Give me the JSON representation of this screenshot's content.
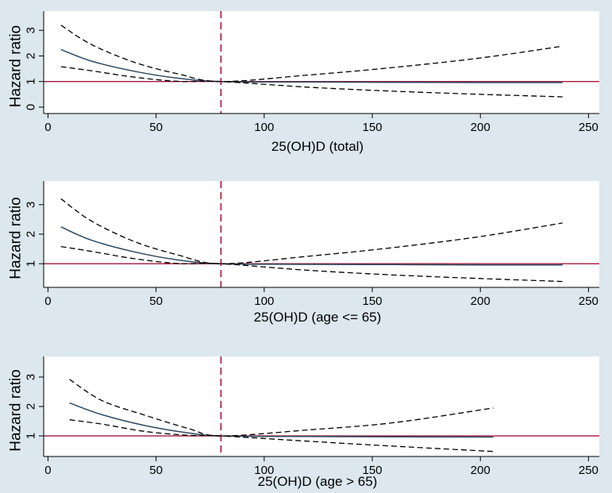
{
  "colors": {
    "background": "#dce7ee",
    "plot_area": "#ffffff",
    "estimate_line": "#2d4a63",
    "ci_line": "#000000",
    "reference_line": "#a4163a",
    "cut_line": "#a4163a"
  },
  "chart_data": [
    {
      "type": "line",
      "xlabel": "25(OH)D (total)",
      "ylabel": "Hazard ratio",
      "xlim": [
        -2,
        255
      ],
      "ylim": [
        -0.25,
        3.75
      ],
      "xticks": [
        0,
        50,
        100,
        150,
        200,
        250
      ],
      "yticks": [
        0,
        1,
        2,
        3
      ],
      "reference_y": 1,
      "vertical_line_x": 80,
      "series": [
        {
          "role": "estimate",
          "x": [
            6,
            20,
            40,
            60,
            80,
            120,
            160,
            200,
            238
          ],
          "values": [
            2.25,
            1.8,
            1.4,
            1.13,
            1.0,
            0.98,
            0.97,
            0.96,
            0.96
          ]
        },
        {
          "role": "upper",
          "x": [
            6,
            20,
            40,
            60,
            80,
            120,
            160,
            200,
            238
          ],
          "values": [
            3.2,
            2.45,
            1.75,
            1.3,
            1.0,
            1.25,
            1.55,
            1.92,
            2.38
          ]
        },
        {
          "role": "lower",
          "x": [
            6,
            20,
            40,
            60,
            80,
            120,
            160,
            200,
            238
          ],
          "values": [
            1.58,
            1.42,
            1.17,
            1.01,
            1.0,
            0.78,
            0.62,
            0.5,
            0.4
          ]
        }
      ]
    },
    {
      "type": "line",
      "xlabel": "25(OH)D (age <= 65)",
      "ylabel": "Hazard ratio",
      "xlim": [
        -2,
        255
      ],
      "ylim": [
        0.2,
        3.8
      ],
      "xticks": [
        0,
        50,
        100,
        150,
        200,
        250
      ],
      "yticks": [
        1,
        2,
        3
      ],
      "reference_y": 1,
      "vertical_line_x": 80,
      "series": [
        {
          "role": "estimate",
          "x": [
            6,
            20,
            40,
            60,
            80,
            120,
            160,
            200,
            238
          ],
          "values": [
            2.25,
            1.8,
            1.4,
            1.13,
            1.0,
            0.98,
            0.97,
            0.96,
            0.96
          ]
        },
        {
          "role": "upper",
          "x": [
            6,
            20,
            40,
            60,
            80,
            120,
            160,
            200,
            238
          ],
          "values": [
            3.2,
            2.45,
            1.75,
            1.3,
            1.0,
            1.25,
            1.55,
            1.92,
            2.38
          ]
        },
        {
          "role": "lower",
          "x": [
            6,
            20,
            40,
            60,
            80,
            120,
            160,
            200,
            238
          ],
          "values": [
            1.58,
            1.42,
            1.17,
            1.01,
            1.0,
            0.78,
            0.62,
            0.5,
            0.4
          ]
        }
      ]
    },
    {
      "type": "line",
      "xlabel": "25(OH)D (age > 65)",
      "ylabel": "Hazard ratio",
      "xlim": [
        -2,
        255
      ],
      "ylim": [
        0.3,
        3.7
      ],
      "xticks": [
        0,
        50,
        100,
        150,
        200,
        250
      ],
      "yticks": [
        1,
        2,
        3
      ],
      "reference_y": 1,
      "vertical_line_x": 80,
      "series": [
        {
          "role": "estimate",
          "x": [
            10,
            25,
            45,
            65,
            80,
            120,
            160,
            206
          ],
          "values": [
            2.12,
            1.72,
            1.35,
            1.1,
            1.0,
            0.98,
            0.97,
            0.96
          ]
        },
        {
          "role": "upper",
          "x": [
            10,
            25,
            45,
            65,
            80,
            120,
            160,
            206
          ],
          "values": [
            2.92,
            2.2,
            1.7,
            1.25,
            1.0,
            1.2,
            1.45,
            1.95
          ]
        },
        {
          "role": "lower",
          "x": [
            10,
            25,
            45,
            65,
            80,
            120,
            160,
            206
          ],
          "values": [
            1.55,
            1.4,
            1.15,
            1.02,
            1.0,
            0.82,
            0.65,
            0.47
          ]
        }
      ]
    }
  ]
}
